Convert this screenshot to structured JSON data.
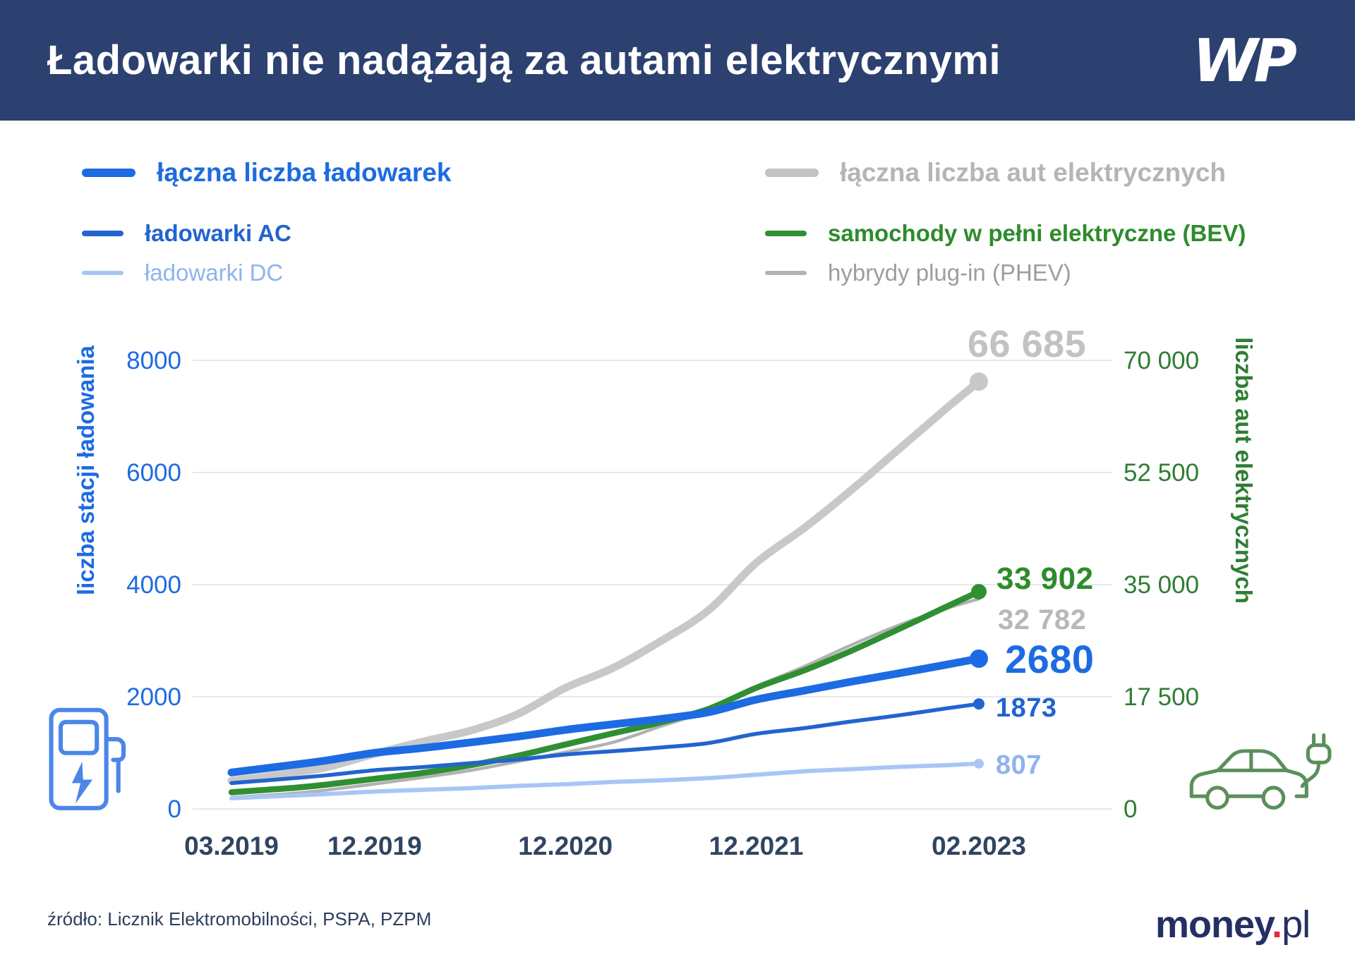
{
  "header": {
    "title": "Ładowarki nie nadążają za autami elektrycznymi",
    "logo": "WP"
  },
  "legend": {
    "left": [
      {
        "label": "łączna liczba ładowarek",
        "color": "#1d6be2"
      },
      {
        "label": "ładowarki AC",
        "color": "#2264cf"
      },
      {
        "label": "ładowarki DC",
        "color": "#a8c6f5",
        "text_color": "#8fb3ee"
      }
    ],
    "right": [
      {
        "label": "łączna liczba aut elektrycznych",
        "color": "#c3c3c3",
        "text_color": "#b5b5b5"
      },
      {
        "label": "samochody w pełni elektryczne (BEV)",
        "color": "#2f8f33",
        "text_color": "#2e8b2c"
      },
      {
        "label": "hybrydy plug-in (PHEV)",
        "color": "#b2b2b2",
        "text_color": "#9d9d9d"
      }
    ]
  },
  "chart_data": {
    "type": "line",
    "title": "Ładowarki nie nadążają za autami elektrycznymi",
    "grid_color": "#e8e8e8",
    "x_tick_color": "#30455f",
    "x_unit": "month index counted from 03.2019",
    "x_ticks": [
      {
        "label": "03.2019",
        "month": 0
      },
      {
        "label": "12.2019",
        "month": 9
      },
      {
        "label": "12.2020",
        "month": 21
      },
      {
        "label": "12.2021",
        "month": 33
      },
      {
        "label": "02.2023",
        "month": 47
      }
    ],
    "y_left": {
      "title": "liczba stacji ładowania",
      "color": "#1d6be2",
      "min": 0,
      "max": 8000,
      "tick_values": [
        0,
        2000,
        4000,
        6000,
        8000
      ],
      "ticks": [
        "0",
        "2000",
        "4000",
        "6000",
        "8000"
      ]
    },
    "y_right": {
      "title": "liczba aut elektrycznych",
      "color": "#2f7d33",
      "min": 0,
      "max": 70000,
      "tick_values": [
        0,
        17500,
        35000,
        52500,
        70000
      ],
      "ticks": [
        "0",
        "17 500",
        "35 000",
        "52 500",
        "70 000"
      ]
    },
    "months": [
      0,
      2,
      4,
      6,
      9,
      12,
      15,
      18,
      21,
      24,
      27,
      30,
      33,
      36,
      39,
      42,
      45,
      47
    ],
    "series": [
      {
        "id": "cars_total",
        "name": "łączna liczba aut elektrycznych",
        "axis": "right",
        "color": "#c8c8c8",
        "width": 11,
        "marker_r": 13,
        "end_label": "66 685",
        "label_color": "#c2c2c2",
        "values": [
          4400,
          5000,
          5700,
          6500,
          8600,
          10500,
          12200,
          14800,
          18900,
          22000,
          26200,
          31000,
          38400,
          43800,
          49800,
          56200,
          62600,
          66685
        ]
      },
      {
        "id": "phev",
        "name": "hybrydy plug-in (PHEV)",
        "axis": "right",
        "color": "#b2b2b2",
        "width": 4.5,
        "marker_r": 0,
        "end_label": "32 782",
        "label_color": "#b8b8b8",
        "values": [
          1800,
          2100,
          2450,
          2950,
          3900,
          4900,
          6000,
          7400,
          8850,
          10400,
          12900,
          15400,
          19100,
          22200,
          25600,
          28700,
          31300,
          32782
        ]
      },
      {
        "id": "bev",
        "name": "samochody w pełni elektryczne (BEV)",
        "axis": "right",
        "color": "#2f8f33",
        "width": 8.5,
        "marker_r": 11,
        "end_label": "33 902",
        "label_color": "#2e8b2c",
        "values": [
          2600,
          2950,
          3300,
          3800,
          4700,
          5600,
          6800,
          8300,
          10050,
          11800,
          13500,
          15600,
          18900,
          21600,
          24700,
          28100,
          31600,
          33902
        ]
      },
      {
        "id": "chargers_dc",
        "name": "ładowarki DC",
        "axis": "left",
        "color": "#a8c6f5",
        "width": 6,
        "marker_r": 7,
        "end_label": "807",
        "label_color": "#8fb3ee",
        "values": [
          190,
          215,
          240,
          265,
          310,
          340,
          370,
          410,
          440,
          480,
          510,
          550,
          610,
          670,
          710,
          750,
          780,
          807
        ]
      },
      {
        "id": "chargers_ac",
        "name": "ładowarki AC",
        "axis": "left",
        "color": "#2264cf",
        "width": 5.5,
        "marker_r": 8,
        "end_label": "1873",
        "label_color": "#2264cf",
        "values": [
          460,
          505,
          550,
          600,
          690,
          745,
          815,
          880,
          970,
          1030,
          1095,
          1175,
          1340,
          1440,
          1560,
          1670,
          1795,
          1873
        ]
      },
      {
        "id": "chargers_total",
        "name": "łączna liczba ładowarek",
        "axis": "left",
        "color": "#1d6be2",
        "width": 11,
        "marker_r": 13,
        "end_label": "2680",
        "label_color": "#1d6be2",
        "values": [
          650,
          720,
          790,
          865,
          1000,
          1085,
          1185,
          1290,
          1410,
          1510,
          1605,
          1725,
          1950,
          2110,
          2270,
          2420,
          2575,
          2680
        ]
      }
    ]
  },
  "icons": {
    "charger_color": "#4b86e8",
    "car_color": "#5b8f5b"
  },
  "source": "źródło: Licznik Elektromobilności, PSPA, PZPM",
  "footer_logo": {
    "money": "money",
    "dot": ".",
    "pl": "pl"
  }
}
